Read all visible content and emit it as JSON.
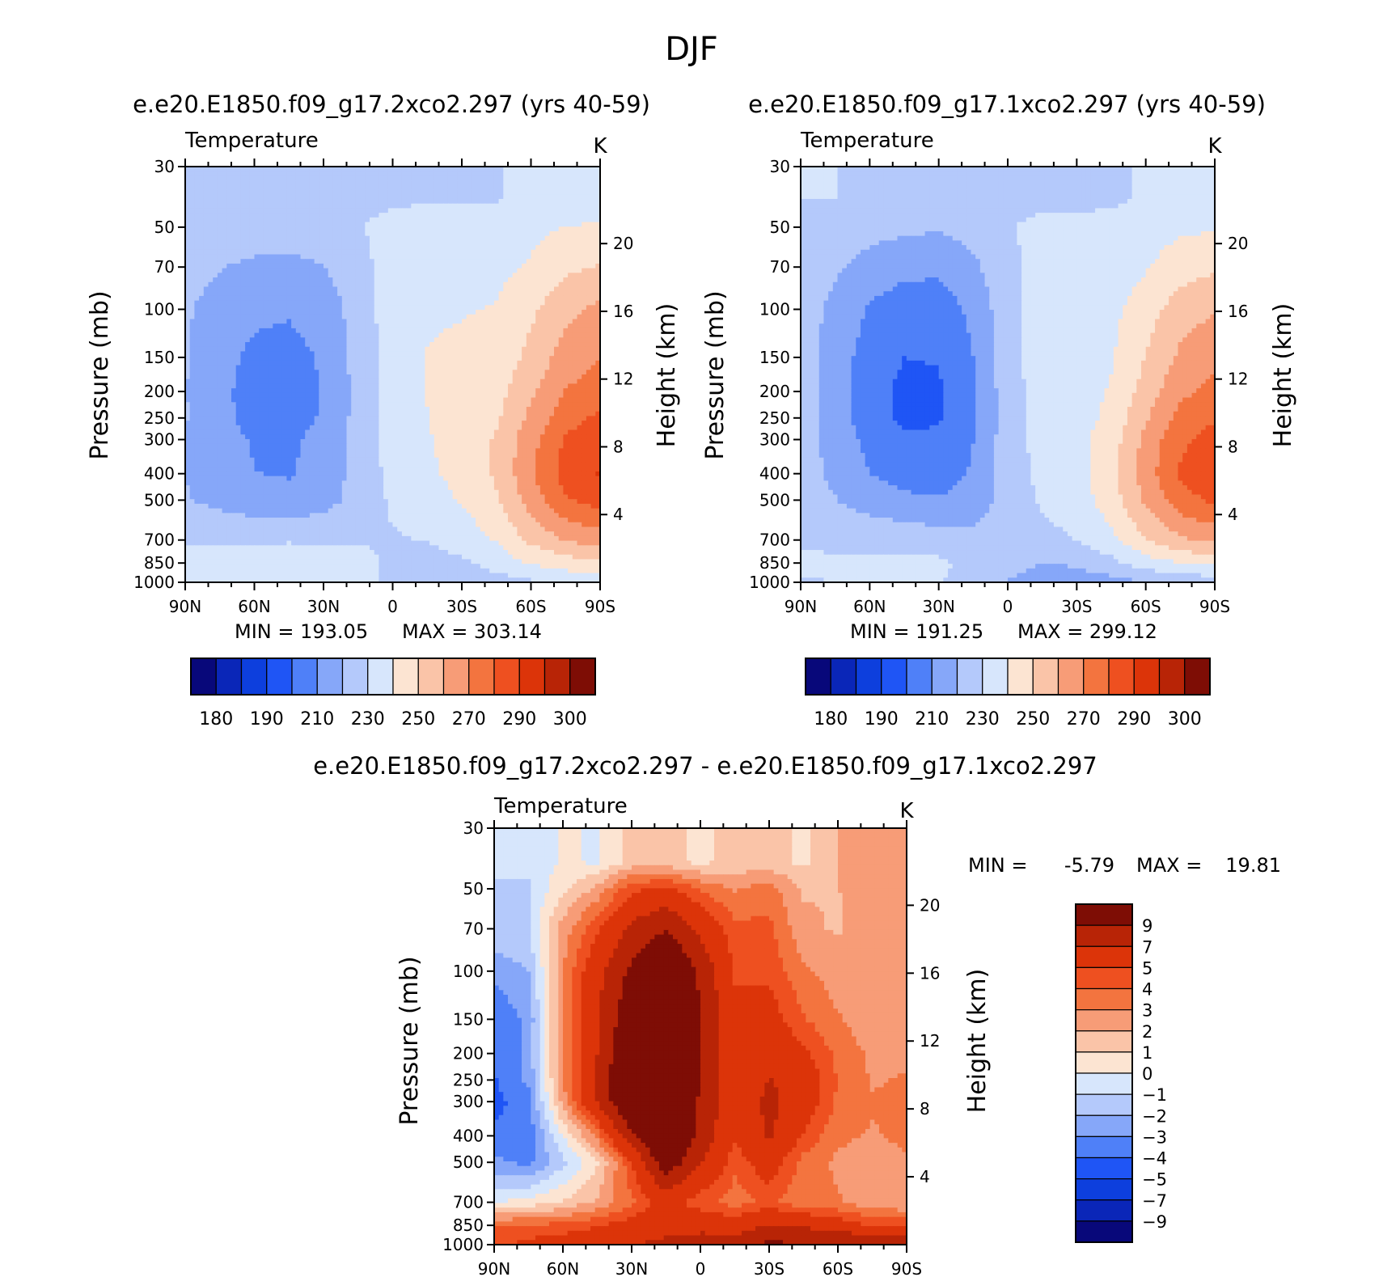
{
  "figure": {
    "title": "DJF",
    "units": "K",
    "variable": "Temperature",
    "pressure_ticks": [
      "30",
      "50",
      "70",
      "100",
      "150",
      "200",
      "250",
      "300",
      "400",
      "500",
      "700",
      "850",
      "1000"
    ],
    "height_ticks": [
      "20",
      "16",
      "12",
      "8",
      "4"
    ],
    "lat_ticks": [
      "90N",
      "60N",
      "30N",
      "0",
      "30S",
      "60S",
      "90S"
    ],
    "left_axis_label": "Pressure (mb)",
    "right_axis_label": "Height (km)"
  },
  "chart_data": [
    {
      "type": "heatmap",
      "title": "e.e20.E1850.f09_g17.2xco2.297 (yrs 40-59)",
      "subtitle": "Temperature",
      "units": "K",
      "xlabel": "",
      "ylabel": "Pressure (mb)",
      "y2label": "Height (km)",
      "x": [
        "90N",
        "60N",
        "30N",
        "0",
        "30S",
        "60S",
        "90S"
      ],
      "y": [
        30,
        50,
        70,
        100,
        150,
        200,
        250,
        300,
        400,
        500,
        700,
        850,
        1000
      ],
      "min_label": "MIN = 193.05",
      "max_label": "MAX = 303.14",
      "min": 193.05,
      "max": 303.14,
      "colorbar_levels": [
        175,
        180,
        185,
        190,
        200,
        210,
        220,
        230,
        240,
        250,
        260,
        270,
        280,
        290,
        295,
        300,
        305
      ],
      "colorbar_labels": [
        "180",
        "190",
        "210",
        "230",
        "250",
        "270",
        "290",
        "300"
      ],
      "colors": [
        "#08087a",
        "#0a26b8",
        "#0d3fdd",
        "#1f55f5",
        "#4f80f8",
        "#86a7f9",
        "#b4c9fb",
        "#d7e6fc",
        "#fce4d2",
        "#fac4a8",
        "#f79c77",
        "#f3743f",
        "#ee5020",
        "#dc3409",
        "#b82406",
        "#7e0d05"
      ],
      "grid": [
        [
          229.5,
          229.5,
          229.5,
          227.7,
          227.4,
          227.4,
          228.3,
          229.5,
          229.5,
          229.5,
          233.0,
          234.0,
          234.0
        ],
        [
          229.5,
          229.5,
          229.5,
          227.7,
          227.4,
          227.4,
          228.3,
          229.5,
          229.5,
          229.5,
          233.0,
          234.0,
          234.0
        ],
        [
          226.9,
          225.3,
          224.6,
          224.6,
          225.7,
          229.4,
          233.3,
          235.1,
          235.6,
          235.4,
          237.7,
          240.2,
          241.3
        ],
        [
          223.8,
          220.4,
          218.3,
          217.6,
          219.5,
          226.7,
          234.3,
          237.6,
          237.7,
          237.3,
          241.0,
          247.8,
          250.7
        ],
        [
          221.3,
          215.9,
          211.8,
          211.0,
          214.0,
          224.6,
          235.0,
          239.3,
          239.5,
          240.5,
          247.9,
          257.5,
          262.2
        ],
        [
          220.6,
          212.9,
          207.9,
          206.8,
          211.2,
          223.5,
          235.1,
          240.2,
          241.3,
          243.2,
          253.2,
          264.3,
          269.7
        ],
        [
          220.5,
          212.2,
          206.3,
          204.9,
          210.5,
          223.1,
          234.7,
          240.2,
          242.4,
          246.0,
          258.0,
          270.2,
          276.0
        ],
        [
          220.6,
          212.7,
          206.8,
          205.5,
          211.1,
          223.3,
          234.2,
          239.8,
          243.2,
          248.5,
          262.7,
          276.1,
          282.2
        ],
        [
          219.8,
          213.4,
          209.1,
          208.5,
          213.0,
          223.8,
          233.7,
          239.3,
          243.9,
          251.2,
          266.6,
          281.1,
          287.5
        ],
        [
          220.0,
          214.4,
          210.2,
          209.2,
          213.4,
          223.8,
          232.9,
          238.0,
          243.3,
          251.6,
          268.4,
          284.0,
          290.8
        ],
        [
          220.8,
          217.0,
          214.1,
          213.1,
          215.5,
          224.4,
          231.4,
          235.6,
          240.8,
          248.7,
          264.4,
          278.8,
          285.0
        ],
        [
          228.5,
          228.4,
          228.6,
          228.9,
          228.6,
          229.2,
          229.2,
          230.6,
          234.4,
          240.7,
          252.4,
          260.9,
          264.4
        ],
        [
          235.5,
          235.7,
          236.2,
          237.4,
          237.8,
          232.9,
          228.5,
          226.0,
          228.2,
          234.0,
          240.7,
          245.2,
          247.7
        ],
        [
          234.3,
          235.3,
          236.4,
          237.3,
          237.4,
          232.7,
          227.7,
          224.9,
          224.5,
          225.6,
          228.7,
          231.7,
          233.8
        ]
      ]
    },
    {
      "type": "heatmap",
      "title": "e.e20.E1850.f09_g17.1xco2.297 (yrs 40-59)",
      "subtitle": "Temperature",
      "units": "K",
      "xlabel": "",
      "ylabel": "Pressure (mb)",
      "y2label": "Height (km)",
      "x": [
        "90N",
        "60N",
        "30N",
        "0",
        "30S",
        "60S",
        "90S"
      ],
      "y": [
        30,
        50,
        70,
        100,
        150,
        200,
        250,
        300,
        400,
        500,
        700,
        850,
        1000
      ],
      "min_label": "MIN = 191.25",
      "max_label": "MAX = 299.12",
      "min": 191.25,
      "max": 299.12,
      "colorbar_levels": [
        175,
        180,
        185,
        190,
        200,
        210,
        220,
        230,
        240,
        250,
        260,
        270,
        280,
        290,
        295,
        300,
        305
      ],
      "colorbar_labels": [
        "180",
        "190",
        "210",
        "230",
        "250",
        "270",
        "290",
        "300"
      ],
      "colors": [
        "#08087a",
        "#0a26b8",
        "#0d3fdd",
        "#1f55f5",
        "#4f80f8",
        "#86a7f9",
        "#b4c9fb",
        "#d7e6fc",
        "#fce4d2",
        "#fac4a8",
        "#f79c77",
        "#f3743f",
        "#ee5020",
        "#dc3409",
        "#b82406",
        "#7e0d05"
      ],
      "grid": [
        [
          230.0,
          230.0,
          229.4,
          227.8,
          226.0,
          226.1,
          227.5,
          228.2,
          228.1,
          228.7,
          231.0,
          232.0,
          232.0
        ],
        [
          230.0,
          230.0,
          229.4,
          227.8,
          226.0,
          226.1,
          227.5,
          228.2,
          228.1,
          228.7,
          231.0,
          232.0,
          232.0
        ],
        [
          228.1,
          226.5,
          223.8,
          222.3,
          221.0,
          224.0,
          229.4,
          232.2,
          232.1,
          233.5,
          235.7,
          238.1,
          239.1
        ],
        [
          224.9,
          221.4,
          215.8,
          212.9,
          212.0,
          217.8,
          227.8,
          233.3,
          233.4,
          235.1,
          239.1,
          245.4,
          248.0
        ],
        [
          224.0,
          217.9,
          208.9,
          204.6,
          204.5,
          212.5,
          226.6,
          234.4,
          234.8,
          237.3,
          245.4,
          255.2,
          259.6
        ],
        [
          224.4,
          215.7,
          204.8,
          200.0,
          200.5,
          209.8,
          225.9,
          234.9,
          235.6,
          239.1,
          250.1,
          262.0,
          267.2
        ],
        [
          224.5,
          214.9,
          203.2,
          197.9,
          198.6,
          208.6,
          225.6,
          234.9,
          236.0,
          240.7,
          254.3,
          267.4,
          273.2
        ],
        [
          224.7,
          215.5,
          203.9,
          198.4,
          199.1,
          208.8,
          225.3,
          234.5,
          236.1,
          242.4,
          258.8,
          273.2,
          279.1
        ],
        [
          224.2,
          216.7,
          206.6,
          201.3,
          201.3,
          209.9,
          225.1,
          233.8,
          236.4,
          245.2,
          262.8,
          278.0,
          284.2
        ],
        [
          223.7,
          218.1,
          210.2,
          205.8,
          204.9,
          211.3,
          224.6,
          232.8,
          236.0,
          246.7,
          265.2,
          281.1,
          287.6
        ],
        [
          223.6,
          220.3,
          215.4,
          212.3,
          210.6,
          213.9,
          224.2,
          231.3,
          234.9,
          245.1,
          261.6,
          276.2,
          282.1
        ],
        [
          228.6,
          228.0,
          227.5,
          226.7,
          224.8,
          223.6,
          224.9,
          227.1,
          230.1,
          237.5,
          249.3,
          258.6,
          262.4
        ],
        [
          231.6,
          231.6,
          231.9,
          232.5,
          232.1,
          226.9,
          222.0,
          220.1,
          221.1,
          227.2,
          234.9,
          240.3,
          242.9
        ],
        [
          229.6,
          229.9,
          230.5,
          230.9,
          230.5,
          225.1,
          219.9,
          216.9,
          215.1,
          216.5,
          219.4,
          222.3,
          224.4
        ]
      ]
    },
    {
      "type": "heatmap",
      "title": "e.e20.E1850.f09_g17.2xco2.297 - e.e20.E1850.f09_g17.1xco2.297",
      "subtitle": "Temperature",
      "units": "K",
      "xlabel": "",
      "ylabel": "Pressure (mb)",
      "y2label": "Height (km)",
      "x": [
        "90N",
        "60N",
        "30N",
        "0",
        "30S",
        "60S",
        "90S"
      ],
      "y": [
        30,
        50,
        70,
        100,
        150,
        200,
        250,
        300,
        400,
        500,
        700,
        850,
        1000
      ],
      "min_label": "MIN =",
      "max_label": "MAX =",
      "min_value": "-5.79",
      "max_value": "19.81",
      "min": -5.79,
      "max": 19.81,
      "colorbar_levels": [
        -11,
        -9,
        -7,
        -5,
        -4,
        -3,
        -2,
        -1,
        0,
        1,
        2,
        3,
        4,
        5,
        7,
        9,
        11
      ],
      "colorbar_labels": [
        "9",
        "7",
        "5",
        "4",
        "3",
        "2",
        "1",
        "0",
        "-1",
        "-2",
        "-3",
        "-4",
        "-5",
        "-7",
        "-9"
      ],
      "colors": [
        "#08087a",
        "#0a26b8",
        "#0d3fdd",
        "#1f55f5",
        "#4f80f8",
        "#86a7f9",
        "#b4c9fb",
        "#d7e6fc",
        "#fce4d2",
        "#fac4a8",
        "#f79c77",
        "#f3743f",
        "#ee5020",
        "#dc3409",
        "#b82406",
        "#7e0d05"
      ],
      "grid": [
        [
          -0.5,
          -0.5,
          0.1,
          -0.1,
          1.4,
          1.3,
          0.8,
          1.3,
          1.4,
          0.8,
          2.0,
          2.0,
          2.0
        ],
        [
          -0.5,
          -0.5,
          0.1,
          -0.1,
          1.4,
          1.3,
          0.8,
          1.3,
          1.4,
          0.8,
          2.0,
          2.0,
          2.0
        ],
        [
          -1.2,
          -1.2,
          0.8,
          2.3,
          4.7,
          5.4,
          3.9,
          2.9,
          3.5,
          1.9,
          2.0,
          2.1,
          2.2
        ],
        [
          -1.1,
          -1.0,
          2.5,
          4.7,
          7.5,
          8.9,
          6.5,
          4.3,
          4.3,
          2.2,
          1.9,
          2.4,
          2.7
        ],
        [
          -2.7,
          -2.0,
          2.9,
          6.4,
          9.5,
          12.1,
          8.4,
          4.9,
          4.7,
          3.2,
          2.5,
          2.3,
          2.6
        ],
        [
          -3.8,
          -2.8,
          3.1,
          6.8,
          10.7,
          13.7,
          9.2,
          5.3,
          5.7,
          4.1,
          3.1,
          2.3,
          2.5
        ],
        [
          -4.0,
          -2.7,
          3.1,
          7.0,
          11.9,
          14.5,
          9.1,
          5.3,
          6.4,
          5.3,
          3.7,
          2.8,
          2.8
        ],
        [
          -4.1,
          -2.8,
          2.9,
          7.1,
          12.0,
          14.5,
          8.9,
          5.3,
          7.1,
          6.1,
          3.9,
          2.9,
          3.1
        ],
        [
          -4.4,
          -3.3,
          2.5,
          7.2,
          11.7,
          13.9,
          8.6,
          5.5,
          7.5,
          6.0,
          3.8,
          3.1,
          3.3
        ],
        [
          -3.7,
          -3.7,
          0.0,
          3.4,
          8.5,
          12.5,
          8.3,
          5.2,
          7.3,
          4.9,
          3.2,
          2.9,
          3.2
        ],
        [
          -2.8,
          -3.3,
          -1.3,
          0.8,
          4.9,
          10.5,
          7.2,
          4.3,
          5.9,
          3.6,
          2.8,
          2.6,
          2.9
        ],
        [
          -0.1,
          0.4,
          1.1,
          2.2,
          3.8,
          5.6,
          4.3,
          3.5,
          4.3,
          3.2,
          3.1,
          2.3,
          2.0
        ],
        [
          3.9,
          4.1,
          4.3,
          4.9,
          5.7,
          6.0,
          6.5,
          5.9,
          7.1,
          6.8,
          5.8,
          4.9,
          4.8
        ],
        [
          4.7,
          5.4,
          5.9,
          6.4,
          6.9,
          7.6,
          7.8,
          8.0,
          9.4,
          9.1,
          9.3,
          9.4,
          9.4
        ]
      ]
    }
  ]
}
